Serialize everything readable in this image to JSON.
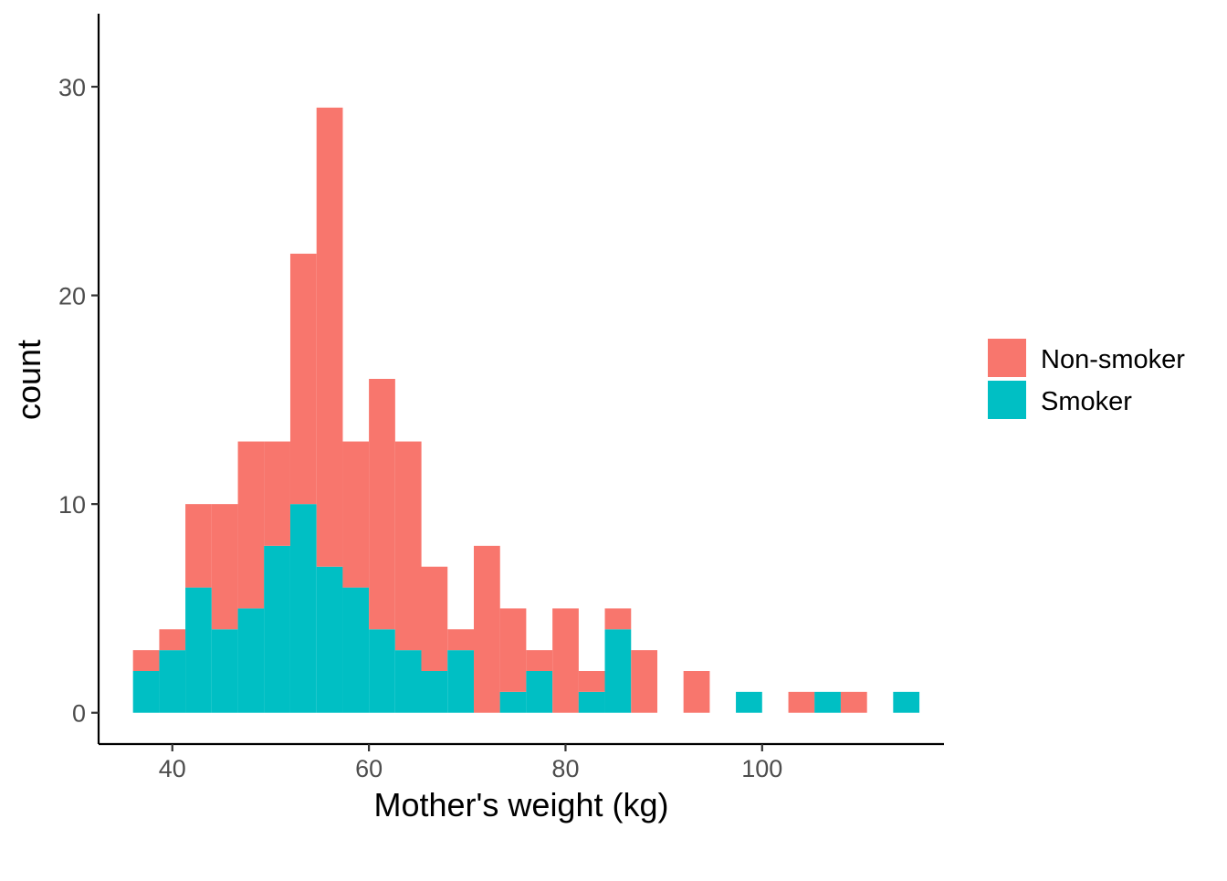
{
  "chart_data": {
    "type": "bar",
    "subtype": "stacked-histogram",
    "title": "",
    "xlabel": "Mother's weight (kg)",
    "ylabel": "count",
    "xlim": [
      32.5,
      118.5
    ],
    "ylim": [
      -1.5,
      33.5
    ],
    "x_ticks": [
      40,
      60,
      80,
      100
    ],
    "y_ticks": [
      0,
      10,
      20,
      30
    ],
    "x_tick_labels": [
      "40",
      "60",
      "80",
      "100"
    ],
    "y_tick_labels": [
      "0",
      "10",
      "20",
      "30"
    ],
    "grid": false,
    "legend_position": "right",
    "bin_width": 2.67,
    "bin_starts": [
      36.0,
      38.67,
      41.33,
      44.0,
      46.67,
      49.33,
      52.0,
      54.67,
      57.33,
      60.0,
      62.67,
      65.33,
      68.0,
      70.67,
      73.33,
      76.0,
      78.67,
      81.33,
      84.0,
      86.67,
      89.33,
      92.0,
      94.67,
      97.33,
      100.0,
      102.67,
      105.33,
      108.0,
      110.67,
      113.33
    ],
    "series": [
      {
        "name": "Non-smoker",
        "color": "#F8766D",
        "values": [
          1,
          1,
          4,
          6,
          8,
          5,
          12,
          22,
          7,
          12,
          10,
          5,
          1,
          8,
          4,
          1,
          5,
          1,
          1,
          3,
          0,
          2,
          0,
          0,
          0,
          1,
          0,
          1,
          0,
          0
        ]
      },
      {
        "name": "Smoker",
        "color": "#00BFC4",
        "values": [
          2,
          3,
          6,
          4,
          5,
          8,
          10,
          7,
          6,
          4,
          3,
          2,
          3,
          0,
          1,
          2,
          0,
          1,
          4,
          0,
          0,
          0,
          0,
          1,
          0,
          0,
          1,
          0,
          0,
          1
        ]
      }
    ]
  }
}
